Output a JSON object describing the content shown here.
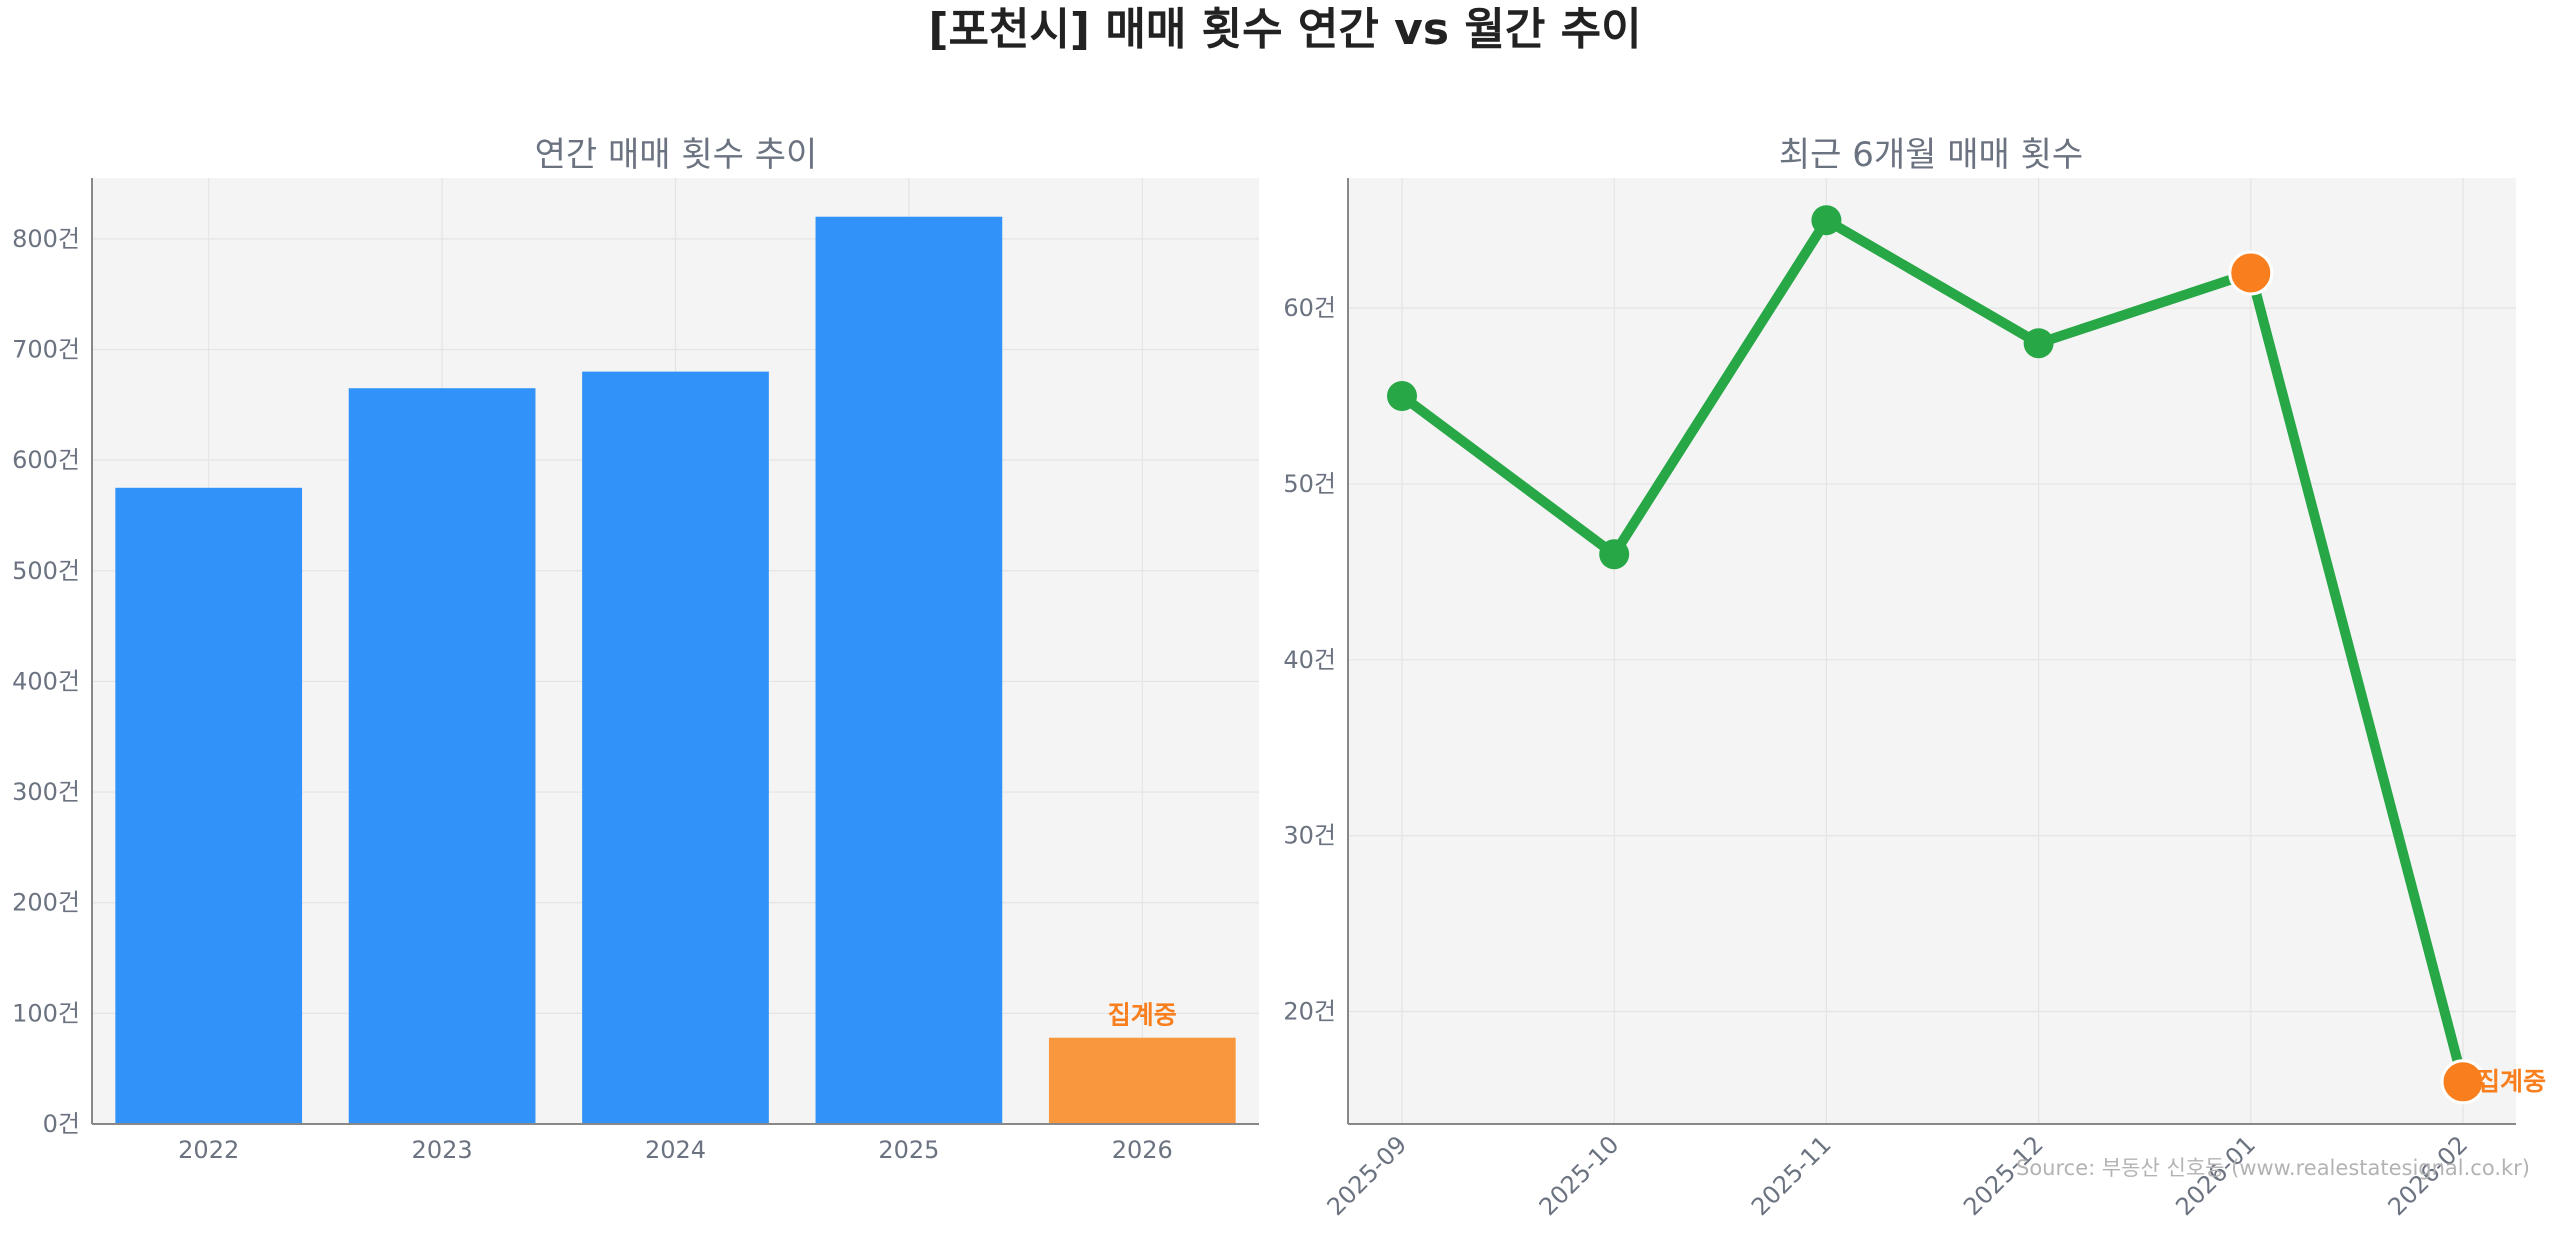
{
  "figure": {
    "title": "[포천시] 매매 횟수 연간 vs 월간 추이",
    "source": "Source: 부동산 신호등 (www.realestatesignal.co.kr)"
  },
  "colors": {
    "bar": "#3193f9",
    "bar_partial": "#f9973e",
    "line": "#27a745",
    "highlight_marker": "#f97f1e",
    "annotation": "#f97f1e"
  },
  "chart_data": [
    {
      "type": "bar",
      "title": "연간 매매 횟수 추이",
      "categories": [
        "2022",
        "2023",
        "2024",
        "2025",
        "2026"
      ],
      "values": [
        575,
        665,
        680,
        820,
        78
      ],
      "partial": [
        false,
        false,
        false,
        false,
        true
      ],
      "annotations": [
        {
          "category": "2026",
          "text": "집계중"
        }
      ],
      "ylim": [
        0,
        855
      ],
      "yticks": [
        0,
        100,
        200,
        300,
        400,
        500,
        600,
        700,
        800
      ],
      "ytick_suffix": "건",
      "grid": true
    },
    {
      "type": "line",
      "title": "최근 6개월 매매 횟수",
      "categories": [
        "2025-09",
        "2025-10",
        "2025-11",
        "2025-12",
        "2026-01",
        "2026-02"
      ],
      "values": [
        55,
        46,
        65,
        58,
        62,
        16
      ],
      "highlight": [
        false,
        false,
        false,
        false,
        true,
        true
      ],
      "annotations": [
        {
          "category": "2026-02",
          "text": "집계중"
        }
      ],
      "ylim": [
        13.6,
        67.4
      ],
      "yticks": [
        20,
        30,
        40,
        50,
        60
      ],
      "ytick_suffix": "건",
      "grid": true
    }
  ]
}
